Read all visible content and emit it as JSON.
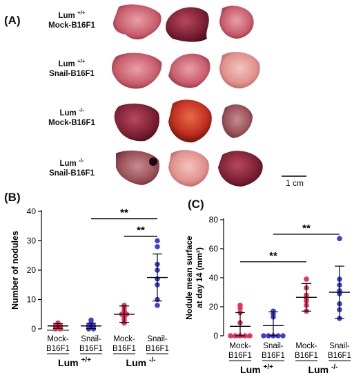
{
  "panel_labels": {
    "a": "(A)",
    "b": "(B)",
    "c": "(C)"
  },
  "lung_rows": [
    {
      "genotype": "Lum",
      "sup": "+/+",
      "condition": "Mock-B16F1"
    },
    {
      "genotype": "Lum",
      "sup": "+/+",
      "condition": "Snail-B16F1"
    },
    {
      "genotype": "Lum",
      "sup": "-/-",
      "condition": "Mock-B16F1"
    },
    {
      "genotype": "Lum",
      "sup": "-/-",
      "condition": "Snail-B16F1"
    }
  ],
  "scale_bar": "1 cm",
  "colors": {
    "mock": "#e8325a",
    "snail": "#3f3fd8",
    "line": "#000000"
  },
  "chart_data": [
    {
      "type": "scatter",
      "panel": "B",
      "ylabel": "Number of nodules",
      "ylim": [
        0,
        40
      ],
      "yticks": [
        0,
        10,
        20,
        30,
        40
      ],
      "tick_labels": [
        [
          "Mock-",
          "B16F1"
        ],
        [
          "Snail-",
          "B16F1"
        ],
        [
          "Mock-",
          "B16F1"
        ],
        [
          "Snail-",
          "B16F1"
        ]
      ],
      "group_labels": [
        {
          "genotype": "Lum",
          "sup": "+/+"
        },
        {
          "genotype": "Lum",
          "sup": "-/-"
        }
      ],
      "series": [
        {
          "category": 0,
          "color_key": "mock",
          "mean": 1,
          "sd": 0.8,
          "values": [
            0,
            0,
            0.3,
            1,
            1,
            1.5,
            2,
            0.5
          ]
        },
        {
          "category": 1,
          "color_key": "snail",
          "mean": 1,
          "sd": 0.9,
          "values": [
            0,
            0,
            0.5,
            1,
            1,
            1.5,
            2,
            3
          ]
        },
        {
          "category": 2,
          "color_key": "mock",
          "mean": 5,
          "sd": 2.8,
          "values": [
            2,
            3,
            4,
            5,
            5,
            6,
            7,
            8
          ]
        },
        {
          "category": 3,
          "color_key": "snail",
          "mean": 17.5,
          "sd": 8,
          "values": [
            8,
            10,
            15,
            17,
            20,
            22,
            28,
            30
          ]
        }
      ],
      "significance": [
        {
          "from": 1,
          "to": 3,
          "y": 37.5,
          "label": "**"
        },
        {
          "from": 2,
          "to": 3,
          "y": 31.5,
          "label": "**"
        }
      ]
    },
    {
      "type": "scatter",
      "panel": "C",
      "ylabel_lines": [
        "Nodule mean surface",
        "at day 14 (mm²)"
      ],
      "ylim": [
        0,
        80
      ],
      "yticks": [
        0,
        20,
        40,
        60,
        80
      ],
      "tick_labels": [
        [
          "Mock-",
          "B16F1"
        ],
        [
          "Snail-",
          "B16F1"
        ],
        [
          "Mock-",
          "B16F1"
        ],
        [
          "Snail-",
          "B16F1"
        ]
      ],
      "group_labels": [
        {
          "genotype": "Lum",
          "sup": "+/+"
        },
        {
          "genotype": "Lum",
          "sup": "-/-"
        }
      ],
      "series": [
        {
          "category": 0,
          "color_key": "mock",
          "mean": 6.5,
          "sd": 9.5,
          "values": [
            0,
            0,
            0,
            0,
            0,
            9,
            16,
            19,
            21
          ]
        },
        {
          "category": 1,
          "color_key": "snail",
          "mean": 7,
          "sd": 9.5,
          "values": [
            0,
            0,
            0,
            0,
            0,
            13,
            15,
            17
          ]
        },
        {
          "category": 2,
          "color_key": "mock",
          "mean": 26.5,
          "sd": 9.5,
          "values": [
            17,
            21,
            24,
            26,
            28,
            33,
            39
          ]
        },
        {
          "category": 3,
          "color_key": "snail",
          "mean": 30,
          "sd": 18,
          "values": [
            12,
            18,
            22,
            29,
            31,
            35,
            39,
            67
          ]
        }
      ],
      "significance": [
        {
          "from": 0,
          "to": 2,
          "y": 51,
          "label": "**"
        },
        {
          "from": 1,
          "to": 3,
          "y": 70,
          "label": "**"
        }
      ]
    }
  ]
}
